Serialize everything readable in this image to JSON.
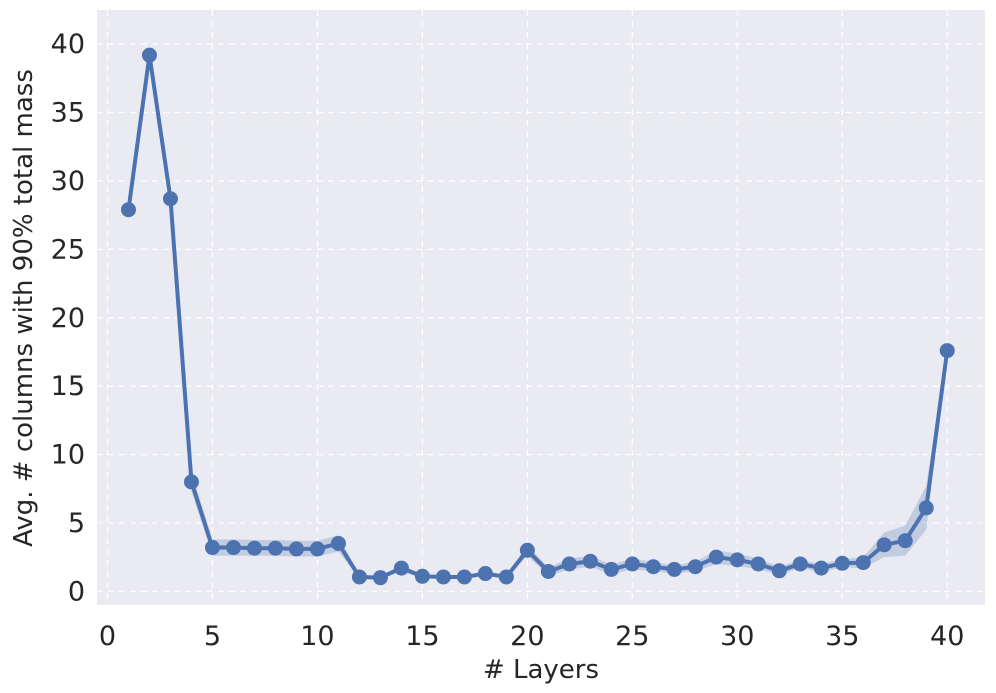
{
  "chart_data": {
    "type": "line",
    "title": "",
    "xlabel": "# Layers",
    "ylabel": "Avg. # columns with 90% total mass",
    "xlim": [
      -0.5,
      41.8
    ],
    "ylim": [
      -1.0,
      42.5
    ],
    "xticks": [
      0,
      5,
      10,
      15,
      20,
      25,
      30,
      35,
      40
    ],
    "yticks": [
      0,
      5,
      10,
      15,
      20,
      25,
      30,
      35,
      40
    ],
    "grid": true,
    "legend": "none",
    "colors": {
      "background": "#EAEAF2",
      "grid": "#ffffff",
      "line": "#4C72B0",
      "band": "#4C72B0",
      "text": "#262626"
    },
    "series": [
      {
        "x": [
          1,
          2,
          3,
          4,
          5,
          6,
          7,
          8,
          9,
          10,
          11,
          12,
          13,
          14,
          15,
          16,
          17,
          18,
          19,
          20,
          21,
          22,
          23,
          24,
          25,
          26,
          27,
          28,
          29,
          30,
          31,
          32,
          33,
          34,
          35,
          36,
          37,
          38,
          39,
          40
        ],
        "y": [
          27.9,
          39.2,
          28.7,
          8.0,
          3.2,
          3.2,
          3.15,
          3.15,
          3.1,
          3.1,
          3.5,
          1.05,
          1.0,
          1.7,
          1.1,
          1.05,
          1.05,
          1.3,
          1.05,
          3.0,
          1.45,
          2.0,
          2.2,
          1.6,
          2.0,
          1.8,
          1.6,
          1.8,
          2.5,
          2.3,
          2.0,
          1.5,
          2.0,
          1.7,
          2.05,
          2.1,
          3.4,
          3.7,
          6.1,
          17.6
        ],
        "lower": [
          27.7,
          38.8,
          28.4,
          7.3,
          2.6,
          2.6,
          2.6,
          2.6,
          2.55,
          2.55,
          2.9,
          0.95,
          0.9,
          1.45,
          0.95,
          0.95,
          0.95,
          1.1,
          0.95,
          2.6,
          1.15,
          1.6,
          1.8,
          1.25,
          1.6,
          1.45,
          1.3,
          1.45,
          2.0,
          1.85,
          1.6,
          1.2,
          1.7,
          1.4,
          1.75,
          1.7,
          2.5,
          2.6,
          4.5,
          17.2
        ],
        "upper": [
          28.1,
          39.6,
          29.0,
          8.7,
          3.8,
          3.8,
          3.75,
          3.75,
          3.7,
          3.7,
          4.1,
          1.15,
          1.1,
          1.95,
          1.25,
          1.15,
          1.15,
          1.5,
          1.15,
          3.4,
          1.75,
          2.4,
          2.6,
          1.95,
          2.4,
          2.15,
          1.9,
          2.15,
          3.0,
          2.75,
          2.4,
          1.8,
          2.3,
          2.0,
          2.35,
          2.5,
          4.3,
          4.8,
          7.7,
          18.0
        ]
      }
    ]
  }
}
